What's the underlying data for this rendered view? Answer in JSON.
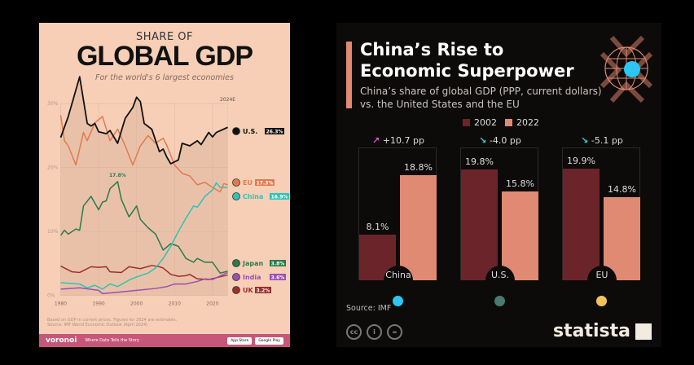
{
  "left": {
    "title_top": "SHARE OF",
    "title_main": "GLOBAL GDP",
    "subtitle": "For the world's 6 largest economies",
    "note1": "Based on GDP in current prices. Figures for 2024 are estimates.",
    "note2": "Source: IMF World Economic Outlook (April 2024)",
    "brand": "voronoi",
    "tagline": "Where Data Tells the Story",
    "app_store": "App Store",
    "google_play": "Google Play"
  },
  "right": {
    "title": "China’s Rise to Economic Superpower",
    "subtitle1": "China’s share of global GDP (PPP, current dollars)",
    "subtitle2": "vs. the United States and the EU",
    "source": "Source: IMF",
    "brand": "statista",
    "cc": "cc",
    "by": "i",
    "nd": "="
  },
  "chart_data": [
    {
      "type": "line",
      "title": "SHARE OF GLOBAL GDP",
      "subtitle": "For the world's 6 largest economies",
      "ylim": [
        0,
        30
      ],
      "yticks": [
        "0%",
        "10%",
        "20%",
        "30%"
      ],
      "xticks": [
        "1980",
        "1990",
        "2000",
        "2010",
        "2020",
        "2024E"
      ],
      "annotations": [
        {
          "label": "17.8%",
          "series": "Japan",
          "year": 1995
        }
      ],
      "series": [
        {
          "name": "U.S.",
          "label": "26.3%",
          "color": "#111111",
          "points": [
            [
              1980,
              24.7
            ],
            [
              1982,
              28
            ],
            [
              1985,
              34.2
            ],
            [
              1987,
              26.9
            ],
            [
              1988,
              26.5
            ],
            [
              1989,
              26.9
            ],
            [
              1990,
              25.6
            ],
            [
              1992,
              25.3
            ],
            [
              1993,
              25.8
            ],
            [
              1995,
              23.8
            ],
            [
              1997,
              27.7
            ],
            [
              1999,
              29.4
            ],
            [
              2000,
              31
            ],
            [
              2001,
              30.3
            ],
            [
              2002,
              26.9
            ],
            [
              2004,
              26
            ],
            [
              2006,
              22.5
            ],
            [
              2007,
              22.9
            ],
            [
              2008,
              21.6
            ],
            [
              2009,
              20.6
            ],
            [
              2011,
              21.2
            ],
            [
              2012,
              23.8
            ],
            [
              2014,
              23.4
            ],
            [
              2016,
              24.2
            ],
            [
              2017,
              23.6
            ],
            [
              2019,
              25.5
            ],
            [
              2020,
              24.8
            ],
            [
              2021,
              25.5
            ],
            [
              2024,
              26.3
            ]
          ]
        },
        {
          "name": "EU",
          "label": "17.3%",
          "color": "#e07a50",
          "points": [
            [
              1980,
              28.2
            ],
            [
              1981,
              24.2
            ],
            [
              1982,
              23.4
            ],
            [
              1984,
              20.4
            ],
            [
              1986,
              25.5
            ],
            [
              1987,
              24.2
            ],
            [
              1989,
              27
            ],
            [
              1991,
              28
            ],
            [
              1993,
              24.2
            ],
            [
              1995,
              26
            ],
            [
              1997,
              23.4
            ],
            [
              1999,
              20.4
            ],
            [
              2001,
              23.4
            ],
            [
              2003,
              25
            ],
            [
              2005,
              23.8
            ],
            [
              2007,
              24.6
            ],
            [
              2008,
              23.4
            ],
            [
              2010,
              20.4
            ],
            [
              2012,
              19.1
            ],
            [
              2014,
              18.7
            ],
            [
              2016,
              17.3
            ],
            [
              2018,
              17.7
            ],
            [
              2020,
              16.9
            ],
            [
              2022,
              16.2
            ],
            [
              2023,
              17.5
            ],
            [
              2024,
              17.3
            ]
          ]
        },
        {
          "name": "China",
          "label": "16.9%",
          "color": "#2cc4b8",
          "points": [
            [
              1980,
              2.0
            ],
            [
              1985,
              1.8
            ],
            [
              1987,
              1.2
            ],
            [
              1989,
              1.6
            ],
            [
              1991,
              1.0
            ],
            [
              1993,
              1.8
            ],
            [
              1995,
              1.4
            ],
            [
              1998,
              2.4
            ],
            [
              2000,
              2.9
            ],
            [
              2003,
              3.5
            ],
            [
              2005,
              4.3
            ],
            [
              2007,
              5.8
            ],
            [
              2009,
              7.7
            ],
            [
              2011,
              10
            ],
            [
              2013,
              12.1
            ],
            [
              2015,
              14
            ],
            [
              2016,
              13.8
            ],
            [
              2018,
              15.5
            ],
            [
              2020,
              16.5
            ],
            [
              2021,
              17.6
            ],
            [
              2022,
              16.9
            ],
            [
              2024,
              16.9
            ]
          ]
        },
        {
          "name": "Japan",
          "label": "3.8%",
          "color": "#2a7a4c",
          "points": [
            [
              1980,
              9.4
            ],
            [
              1981,
              10.2
            ],
            [
              1982,
              9.6
            ],
            [
              1984,
              10.4
            ],
            [
              1985,
              10.2
            ],
            [
              1986,
              14
            ],
            [
              1988,
              15.5
            ],
            [
              1990,
              13.4
            ],
            [
              1991,
              14.6
            ],
            [
              1992,
              14.8
            ],
            [
              1993,
              16.7
            ],
            [
              1995,
              17.8
            ],
            [
              1996,
              15
            ],
            [
              1998,
              12.3
            ],
            [
              2000,
              14
            ],
            [
              2001,
              11.9
            ],
            [
              2003,
              10.6
            ],
            [
              2005,
              9.6
            ],
            [
              2007,
              7.1
            ],
            [
              2009,
              8.1
            ],
            [
              2011,
              7.7
            ],
            [
              2013,
              5.8
            ],
            [
              2015,
              5.2
            ],
            [
              2016,
              5.8
            ],
            [
              2018,
              5.2
            ],
            [
              2020,
              5.2
            ],
            [
              2022,
              3.5
            ],
            [
              2024,
              3.8
            ]
          ]
        },
        {
          "name": "India",
          "label": "3.6%",
          "color": "#9b4fb0",
          "points": [
            [
              1980,
              1.0
            ],
            [
              1985,
              1.2
            ],
            [
              1990,
              0.8
            ],
            [
              1991,
              0.3
            ],
            [
              1995,
              0.5
            ],
            [
              2000,
              0.8
            ],
            [
              2005,
              1.1
            ],
            [
              2008,
              1.4
            ],
            [
              2010,
              1.8
            ],
            [
              2013,
              1.8
            ],
            [
              2016,
              2.2
            ],
            [
              2018,
              2.6
            ],
            [
              2020,
              2.5
            ],
            [
              2024,
              3.6
            ]
          ]
        },
        {
          "name": "UK",
          "label": "3.2%",
          "color": "#9c2f2a",
          "points": [
            [
              1980,
              4.6
            ],
            [
              1983,
              3.7
            ],
            [
              1985,
              3.6
            ],
            [
              1988,
              4.5
            ],
            [
              1990,
              4.4
            ],
            [
              1992,
              4.5
            ],
            [
              1993,
              3.7
            ],
            [
              1996,
              3.6
            ],
            [
              1998,
              4.5
            ],
            [
              2001,
              4.2
            ],
            [
              2004,
              4.7
            ],
            [
              2006,
              4.5
            ],
            [
              2007,
              4.3
            ],
            [
              2009,
              3.3
            ],
            [
              2011,
              3.0
            ],
            [
              2013,
              3.1
            ],
            [
              2014,
              3.3
            ],
            [
              2016,
              2.6
            ],
            [
              2019,
              2.5
            ],
            [
              2024,
              3.2
            ]
          ]
        }
      ]
    },
    {
      "type": "bar",
      "title": "China’s Rise to Economic Superpower",
      "legend": [
        "2002",
        "2022"
      ],
      "colors": [
        "#6b252a",
        "#e08a73"
      ],
      "categories": [
        "China",
        "U.S.",
        "EU"
      ],
      "series": [
        {
          "name": "2002",
          "values": [
            8.1,
            19.8,
            19.9
          ],
          "labels": [
            "8.1%",
            "19.8%",
            "19.9%"
          ]
        },
        {
          "name": "2022",
          "values": [
            18.8,
            15.8,
            14.8
          ],
          "labels": [
            "18.8%",
            "15.8%",
            "14.8%"
          ]
        }
      ],
      "changes": [
        "+10.7 pp",
        "-4.0 pp",
        "-5.1 pp"
      ],
      "change_arrows": [
        "↗",
        "↘",
        "↘"
      ],
      "change_colors": [
        "#d65fd0",
        "#38d0d8",
        "#38d0d8"
      ],
      "flag_colors": [
        "#2cc6f2",
        "#4a7a70",
        "#f2c35a"
      ],
      "ylim": [
        0,
        23.7
      ]
    }
  ]
}
